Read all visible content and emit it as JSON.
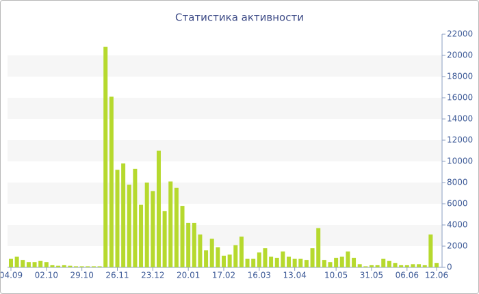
{
  "chart_data": {
    "type": "bar",
    "title": "Статистика активности",
    "categories": [
      "04.09",
      null,
      null,
      null,
      null,
      null,
      "02.10",
      null,
      null,
      null,
      null,
      null,
      "29.10",
      null,
      null,
      null,
      null,
      null,
      "26.11",
      null,
      null,
      null,
      null,
      null,
      "23.12",
      null,
      null,
      null,
      null,
      null,
      "20.01",
      null,
      null,
      null,
      null,
      null,
      "17.02",
      null,
      null,
      null,
      null,
      null,
      "16.03",
      null,
      null,
      null,
      null,
      null,
      "13.04",
      null,
      null,
      null,
      null,
      null,
      null,
      "10.05",
      null,
      null,
      null,
      null,
      null,
      "31.05",
      null,
      null,
      null,
      null,
      null,
      "06.06",
      null,
      null,
      null,
      null,
      "12.06"
    ],
    "values": [
      800,
      1000,
      700,
      500,
      500,
      600,
      500,
      200,
      150,
      200,
      150,
      100,
      100,
      100,
      100,
      100,
      20800,
      16100,
      9200,
      9800,
      7800,
      9300,
      5900,
      8000,
      7200,
      11000,
      5300,
      8100,
      7500,
      5800,
      4200,
      4200,
      3100,
      1600,
      2700,
      1900,
      1100,
      1200,
      2100,
      2900,
      800,
      800,
      1400,
      1800,
      1000,
      900,
      1500,
      1000,
      800,
      800,
      700,
      1800,
      3700,
      700,
      500,
      900,
      1000,
      1500,
      900,
      300,
      100,
      200,
      200,
      800,
      600,
      400,
      200,
      200,
      300,
      300,
      200,
      3100,
      400
    ],
    "color": "#b6d92e",
    "ylim": [
      0,
      22000
    ],
    "yticks": [
      0,
      2000,
      4000,
      6000,
      8000,
      10000,
      12000,
      14000,
      16000,
      18000,
      20000,
      22000
    ],
    "grid": true
  }
}
